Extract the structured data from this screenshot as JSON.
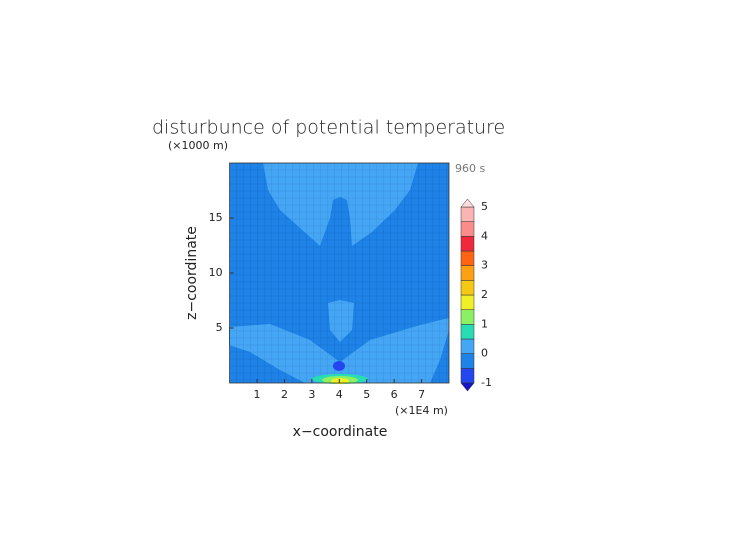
{
  "chart_data": {
    "type": "contour",
    "title": "disturbunce of potential temperature",
    "time_label": "960 s",
    "x_label": "x−coordinate",
    "x_unit": "(×1E4 m)",
    "y_label": "z−coordinate",
    "y_unit": "(×1000 m)",
    "xlim": [
      0,
      8
    ],
    "xticks": [
      1,
      2,
      3,
      4,
      5,
      6,
      7
    ],
    "ylim": [
      0,
      20
    ],
    "yticks": [
      5,
      10,
      15
    ],
    "colorbar": {
      "levels": [
        -1,
        -0.5,
        0,
        0.5,
        1,
        1.5,
        2,
        2.5,
        3,
        3.5,
        4,
        4.5,
        5
      ],
      "colors": [
        "#2346f0",
        "#1e82e6",
        "#44a6f4",
        "#28dcb4",
        "#8cf064",
        "#f0f028",
        "#f5c814",
        "#ffa014",
        "#ff6414",
        "#f0283c",
        "#fa8c8c",
        "#fab4b4"
      ],
      "under_color": "#1414c8",
      "over_color": "#ffdcdc",
      "ticks": [
        -1,
        0,
        1,
        2,
        3,
        4,
        5
      ]
    }
  }
}
